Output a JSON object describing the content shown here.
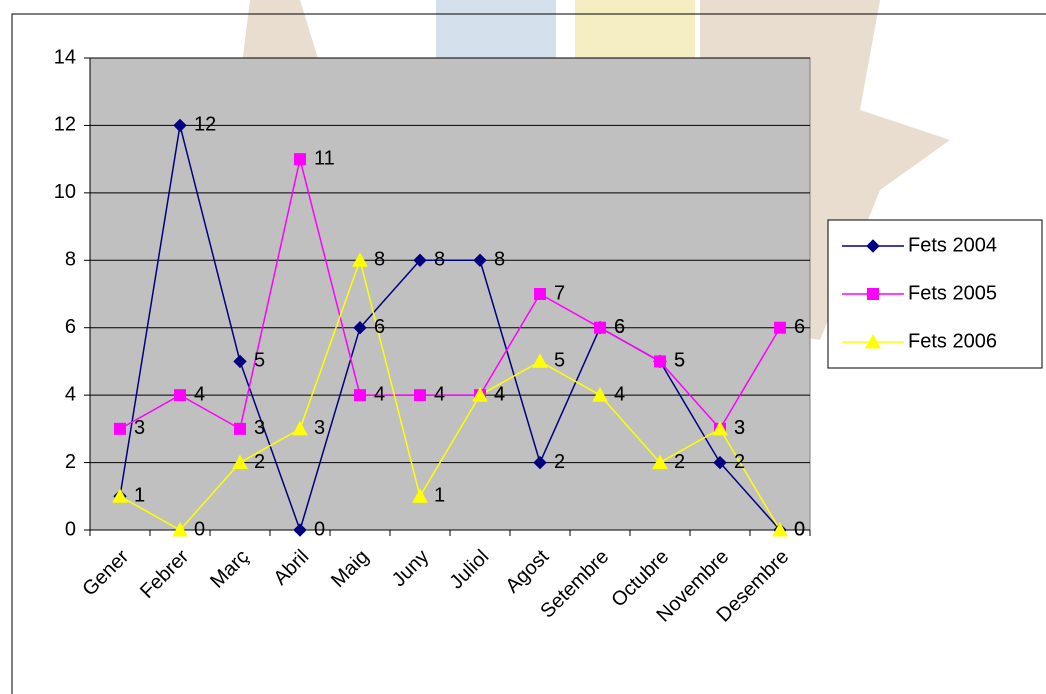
{
  "chart_data": {
    "type": "line",
    "categories": [
      "Gener",
      "Febrer",
      "Març",
      "Abril",
      "Maig",
      "Juny",
      "Juliol",
      "Agost",
      "Setembre",
      "Octubre",
      "Novembre",
      "Desembre"
    ],
    "series": [
      {
        "name": "Fets 2004",
        "color": "#000080",
        "marker": "diamond",
        "values": [
          1,
          12,
          5,
          0,
          6,
          8,
          8,
          2,
          6,
          5,
          2,
          0
        ]
      },
      {
        "name": "Fets 2005",
        "color": "#ff00ff",
        "marker": "square",
        "values": [
          3,
          4,
          3,
          11,
          4,
          4,
          4,
          7,
          6,
          5,
          3,
          6
        ]
      },
      {
        "name": "Fets 2006",
        "color": "#ffff00",
        "marker": "triangle",
        "values": [
          1,
          0,
          2,
          3,
          8,
          1,
          4,
          5,
          4,
          2,
          3,
          0
        ]
      }
    ],
    "ylim": [
      0,
      14
    ],
    "yticks": [
      0,
      2,
      4,
      6,
      8,
      10,
      12,
      14
    ],
    "grid": true,
    "legend": "right"
  }
}
